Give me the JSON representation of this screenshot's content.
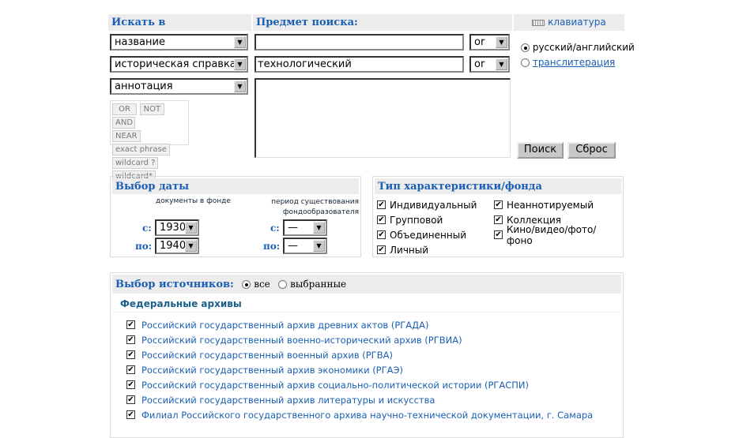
{
  "search": {
    "field_header": "Искать в",
    "subject_header": "Предмет поиска:",
    "keyboard_label": "клавиатура",
    "rows": [
      {
        "field": "название",
        "value": "",
        "op": "or"
      },
      {
        "field": "историческая справка",
        "value": "технологический",
        "op": "or"
      },
      {
        "field": "аннотация"
      }
    ],
    "operators": [
      "OR",
      "NOT",
      "AND",
      "NEAR",
      "exact phrase",
      "wildcard ?",
      "wildcard*"
    ],
    "lang_options": [
      {
        "label": "русский/английский",
        "selected": true
      },
      {
        "label": "транслитерация",
        "selected": false
      }
    ],
    "search_button": "Поиск",
    "reset_button": "Сброс"
  },
  "date": {
    "title": "Выбор даты",
    "col1_title": "документы в фонде",
    "col2_title_1": "период существования",
    "col2_title_2": "фондообразователя",
    "from_label": "с:",
    "to_label": "по:",
    "docs_from": "1930",
    "docs_to": "1940",
    "period_from": "—",
    "period_to": "—"
  },
  "type": {
    "title": "Тип характеристики/фонда",
    "items": [
      {
        "label": "Индивидуальный",
        "checked": true
      },
      {
        "label": "Неаннотируемый",
        "checked": true
      },
      {
        "label": "Групповой",
        "checked": true
      },
      {
        "label": "Коллекция",
        "checked": true
      },
      {
        "label": "Объединенный",
        "checked": true
      },
      {
        "label": "Кино/видео/фото/фоно",
        "checked": true
      },
      {
        "label": "Личный",
        "checked": true
      }
    ]
  },
  "sources": {
    "title": "Выбор источников:",
    "all_label": "все",
    "selected_label": "выбранные",
    "all_selected": true,
    "group_title": "Федеральные архивы",
    "archives": [
      "Российский государственный архив древних актов (РГАДА)",
      "Российский государственный военно-исторический архив (РГВИА)",
      "Российский государственный военный архив (РГВА)",
      "Российский государственный архив экономики (РГАЭ)",
      "Российский государственный архив социально-политической истории (РГАСПИ)",
      "Российский государственный архив литературы и искусства",
      "Филиал Российского государственного архива научно-технической документации, г. Самара"
    ]
  }
}
